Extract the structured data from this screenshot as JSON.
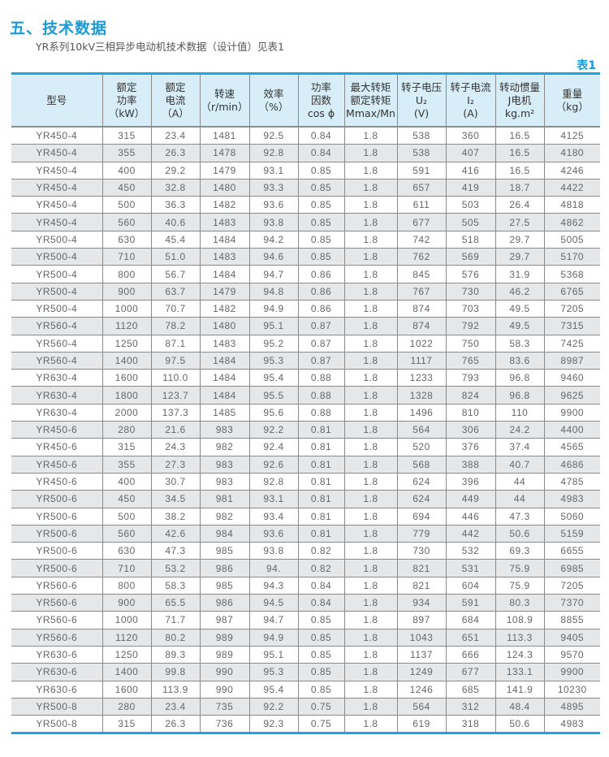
{
  "section_title": "五、技术数据",
  "subtitle": "YR系列10kV三相异步电动机技术数据（设计值）见表1",
  "table_label": "表1",
  "colors": {
    "accent": "#1a9ad6",
    "header_bg": "#d7edf7",
    "alt_row": "#e6e7e9"
  },
  "table": {
    "headers": [
      [
        "型号"
      ],
      [
        "额定",
        "功率",
        "（kW）"
      ],
      [
        "额定",
        "电流",
        "（A）"
      ],
      [
        "转速",
        "（r/min）"
      ],
      [
        "效率",
        "（%）"
      ],
      [
        "功率",
        "因数",
        "cos ϕ"
      ],
      [
        "最大转矩",
        "额定转矩",
        "Mmax/Mn"
      ],
      [
        "转子电压",
        "U₂",
        "(V)"
      ],
      [
        "转子电流",
        "I₂",
        "(A)"
      ],
      [
        "转动惯量",
        "J电机",
        "kg.m²"
      ],
      [
        "重量",
        "（kg）"
      ]
    ],
    "rows": [
      [
        "YR450-4",
        "315",
        "23.4",
        "1481",
        "92.5",
        "0.84",
        "1.8",
        "538",
        "360",
        "16.5",
        "4125"
      ],
      [
        "YR450-4",
        "355",
        "26.3",
        "1478",
        "92.8",
        "0.84",
        "1.8",
        "538",
        "407",
        "16.5",
        "4180"
      ],
      [
        "YR450-4",
        "400",
        "29.2",
        "1479",
        "93.1",
        "0.85",
        "1.8",
        "591",
        "416",
        "16.5",
        "4246"
      ],
      [
        "YR450-4",
        "450",
        "32.8",
        "1480",
        "93.3",
        "0.85",
        "1.8",
        "657",
        "419",
        "18.7",
        "4422"
      ],
      [
        "YR450-4",
        "500",
        "36.3",
        "1482",
        "93.6",
        "0.85",
        "1.8",
        "611",
        "503",
        "26.4",
        "4818"
      ],
      [
        "YR450-4",
        "560",
        "40.6",
        "1483",
        "93.8",
        "0.85",
        "1.8",
        "677",
        "505",
        "27.5",
        "4862"
      ],
      [
        "YR500-4",
        "630",
        "45.4",
        "1484",
        "94.2",
        "0.85",
        "1.8",
        "742",
        "518",
        "29.7",
        "5005"
      ],
      [
        "YR500-4",
        "710",
        "51.0",
        "1483",
        "94.6",
        "0.85",
        "1.8",
        "762",
        "569",
        "29.7",
        "5170"
      ],
      [
        "YR500-4",
        "800",
        "56.7",
        "1484",
        "94.7",
        "0.86",
        "1.8",
        "845",
        "576",
        "31.9",
        "5368"
      ],
      [
        "YR500-4",
        "900",
        "63.7",
        "1479",
        "94.8",
        "0.86",
        "1.8",
        "767",
        "730",
        "46.2",
        "6765"
      ],
      [
        "YR500-4",
        "1000",
        "70.7",
        "1482",
        "94.9",
        "0.86",
        "1.8",
        "874",
        "703",
        "49.5",
        "7205"
      ],
      [
        "YR560-4",
        "1120",
        "78.2",
        "1480",
        "95.1",
        "0.87",
        "1.8",
        "874",
        "792",
        "49.5",
        "7315"
      ],
      [
        "YR560-4",
        "1250",
        "87.1",
        "1483",
        "95.2",
        "0.87",
        "1.8",
        "1022",
        "750",
        "58.3",
        "7425"
      ],
      [
        "YR560-4",
        "1400",
        "97.5",
        "1484",
        "95.3",
        "0.87",
        "1.8",
        "1117",
        "765",
        "83.6",
        "8987"
      ],
      [
        "YR630-4",
        "1600",
        "110.0",
        "1484",
        "95.4",
        "0.88",
        "1.8",
        "1233",
        "793",
        "96.8",
        "9460"
      ],
      [
        "YR630-4",
        "1800",
        "123.7",
        "1484",
        "95.5",
        "0.88",
        "1.8",
        "1328",
        "824",
        "96.8",
        "9625"
      ],
      [
        "YR630-4",
        "2000",
        "137.3",
        "1485",
        "95.6",
        "0.88",
        "1.8",
        "1496",
        "810",
        "110",
        "9900"
      ],
      [
        "YR450-6",
        "280",
        "21.6",
        "983",
        "92.2",
        "0.81",
        "1.8",
        "564",
        "306",
        "24.2",
        "4400"
      ],
      [
        "YR450-6",
        "315",
        "24.3",
        "982",
        "92.4",
        "0.81",
        "1.8",
        "520",
        "376",
        "37.4",
        "4565"
      ],
      [
        "YR450-6",
        "355",
        "27.3",
        "983",
        "92.6",
        "0.81",
        "1.8",
        "568",
        "388",
        "40.7",
        "4686"
      ],
      [
        "YR450-6",
        "400",
        "30.7",
        "983",
        "92.8",
        "0.81",
        "1.8",
        "624",
        "396",
        "44",
        "4785"
      ],
      [
        "YR500-6",
        "450",
        "34.5",
        "981",
        "93.1",
        "0.81",
        "1.8",
        "624",
        "449",
        "44",
        "4983"
      ],
      [
        "YR500-6",
        "500",
        "38.2",
        "982",
        "93.4",
        "0.81",
        "1.8",
        "694",
        "446",
        "47.3",
        "5060"
      ],
      [
        "YR500-6",
        "560",
        "42.6",
        "984",
        "93.6",
        "0.81",
        "1.8",
        "779",
        "442",
        "50.6",
        "5159"
      ],
      [
        "YR500-6",
        "630",
        "47.3",
        "985",
        "93.8",
        "0.82",
        "1.8",
        "730",
        "532",
        "69.3",
        "6655"
      ],
      [
        "YR500-6",
        "710",
        "53.2",
        "986",
        "94.",
        "0.82",
        "1.8",
        "821",
        "531",
        "75.9",
        "6985"
      ],
      [
        "YR560-6",
        "800",
        "58.3",
        "985",
        "94.3",
        "0.84",
        "1.8",
        "821",
        "604",
        "75.9",
        "7205"
      ],
      [
        "YR560-6",
        "900",
        "65.5",
        "986",
        "94.5",
        "0.84",
        "1.8",
        "934",
        "591",
        "80.3",
        "7370"
      ],
      [
        "YR560-6",
        "1000",
        "71.7",
        "987",
        "94.7",
        "0.85",
        "1.8",
        "897",
        "684",
        "108.9",
        "8855"
      ],
      [
        "YR560-6",
        "1120",
        "80.2",
        "989",
        "94.9",
        "0.85",
        "1.8",
        "1043",
        "651",
        "113.3",
        "9405"
      ],
      [
        "YR630-6",
        "1250",
        "89.3",
        "989",
        "95.1",
        "0.85",
        "1.8",
        "1137",
        "666",
        "124.3",
        "9570"
      ],
      [
        "YR630-6",
        "1400",
        "99.8",
        "990",
        "95.3",
        "0.85",
        "1.8",
        "1249",
        "677",
        "133.1",
        "9900"
      ],
      [
        "YR630-6",
        "1600",
        "113.9",
        "990",
        "95.4",
        "0.85",
        "1.8",
        "1246",
        "685",
        "141.9",
        "10230"
      ],
      [
        "YR500-8",
        "280",
        "23.4",
        "735",
        "92.2",
        "0.75",
        "1.8",
        "564",
        "312",
        "48.4",
        "4895"
      ],
      [
        "YR500-8",
        "315",
        "26.3",
        "736",
        "92.3",
        "0.75",
        "1.8",
        "619",
        "318",
        "50.6",
        "4983"
      ]
    ]
  }
}
